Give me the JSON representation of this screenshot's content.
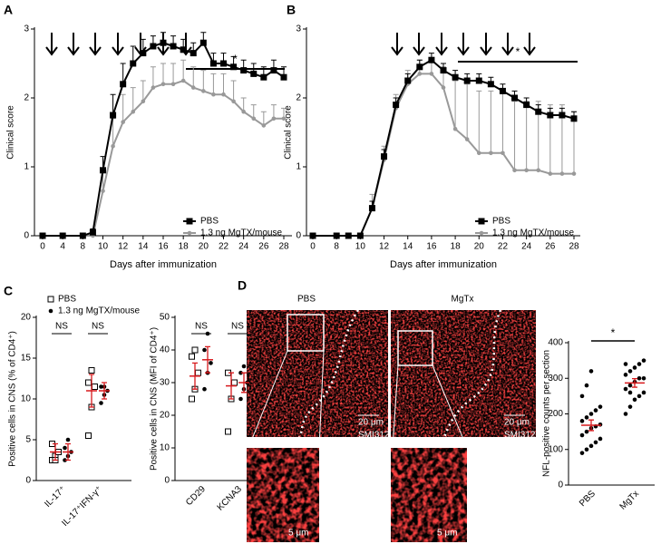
{
  "panel_labels": [
    "A",
    "B",
    "C",
    "D"
  ],
  "micrographs": {
    "labels": [
      "PBS",
      "MgTx"
    ],
    "scale_large": "20 μm",
    "stain": "SMI312",
    "scale_small": "5 μm"
  },
  "chart_data": [
    {
      "type": "line",
      "xlabel": "Days after immunization",
      "ylabel": "Clinical score",
      "legend": "lower right",
      "annotations": [
        "*"
      ],
      "x": [
        0,
        4,
        8,
        9,
        10,
        11,
        12,
        13,
        14,
        15,
        16,
        17,
        18,
        19,
        20,
        21,
        22,
        23,
        24,
        25,
        26,
        27,
        28
      ],
      "xlim": [
        0,
        28
      ],
      "xticks": [
        0,
        4,
        8,
        10,
        12,
        14,
        16,
        18,
        20,
        22,
        24,
        26,
        28
      ],
      "ylim": [
        0,
        3
      ],
      "yticks": [
        0,
        1,
        2,
        3
      ],
      "series": [
        {
          "name": "PBS",
          "color": "#000000",
          "marker": "square",
          "values": [
            0,
            0,
            0,
            0.05,
            0.95,
            1.75,
            2.2,
            2.5,
            2.65,
            2.75,
            2.8,
            2.75,
            2.7,
            2.65,
            2.8,
            2.5,
            2.5,
            2.45,
            2.4,
            2.35,
            2.3,
            2.4,
            2.3
          ],
          "errors": [
            0,
            0,
            0,
            0.05,
            0.2,
            0.3,
            0.3,
            0.25,
            0.2,
            0.15,
            0.15,
            0.15,
            0.15,
            0.15,
            0.15,
            0.15,
            0.15,
            0.15,
            0.15,
            0.15,
            0.15,
            0.15,
            0.15
          ]
        },
        {
          "name": "1.3 ng MgTX/mouse",
          "color": "#999999",
          "marker": "circle",
          "values": [
            0,
            0,
            0,
            0,
            0.65,
            1.3,
            1.65,
            1.8,
            1.95,
            2.15,
            2.2,
            2.2,
            2.25,
            2.15,
            2.1,
            2.05,
            2.05,
            1.95,
            1.8,
            1.7,
            1.6,
            1.7,
            1.7
          ],
          "errors": [
            0,
            0,
            0,
            0,
            0.3,
            0.4,
            0.4,
            0.35,
            0.3,
            0.3,
            0.3,
            0.3,
            0.3,
            0.3,
            0.3,
            0.3,
            0.3,
            0.3,
            0.2,
            0.2,
            0.2,
            0.2,
            0.15
          ]
        }
      ]
    },
    {
      "type": "line",
      "xlabel": "Days after immunization",
      "ylabel": "Clinical score",
      "legend": "lower right",
      "annotations": [
        "*"
      ],
      "x": [
        0,
        8,
        9,
        10,
        11,
        12,
        13,
        14,
        15,
        16,
        17,
        18,
        19,
        20,
        21,
        22,
        23,
        24,
        25,
        26,
        27,
        28
      ],
      "xlim": [
        0,
        28
      ],
      "xticks": [
        0,
        8,
        10,
        12,
        14,
        16,
        18,
        20,
        22,
        24,
        26,
        28
      ],
      "ylim": [
        0,
        3
      ],
      "yticks": [
        0,
        1,
        2,
        3
      ],
      "series": [
        {
          "name": "PBS",
          "color": "#000000",
          "marker": "square",
          "values": [
            0,
            0,
            0,
            0,
            0.4,
            1.15,
            1.9,
            2.25,
            2.45,
            2.55,
            2.4,
            2.3,
            2.25,
            2.25,
            2.2,
            2.1,
            2.0,
            1.9,
            1.8,
            1.75,
            1.75,
            1.7
          ],
          "errors": [
            0,
            0,
            0,
            0,
            0.1,
            0.1,
            0.1,
            0.1,
            0.1,
            0.1,
            0.1,
            0.1,
            0.1,
            0.1,
            0.1,
            0.1,
            0.1,
            0.1,
            0.1,
            0.1,
            0.1,
            0.1
          ]
        },
        {
          "name": "1.3 ng MgTX/mouse",
          "color": "#999999",
          "marker": "circle",
          "values": [
            0,
            0,
            0,
            0,
            0.4,
            1.1,
            1.85,
            2.2,
            2.35,
            2.35,
            2.15,
            1.55,
            1.4,
            1.2,
            1.2,
            1.2,
            0.95,
            0.95,
            0.95,
            0.9,
            0.9,
            0.9
          ],
          "errors": [
            0,
            0,
            0,
            0,
            0.2,
            0.2,
            0.2,
            0.2,
            0.2,
            0.2,
            0.3,
            0.7,
            0.8,
            0.9,
            0.9,
            0.9,
            1.0,
            1.0,
            1.0,
            1.0,
            1.0,
            0.9
          ]
        }
      ]
    },
    {
      "type": "dot",
      "ylabel": "Positive cells in CNS (% of CD4⁺)",
      "categories": [
        "IL-17⁺",
        "IL-17⁺IFN-γ⁺"
      ],
      "annotations": [
        "NS",
        "NS"
      ],
      "ylim": [
        0,
        20
      ],
      "yticks": [
        0,
        5,
        10,
        15,
        20
      ],
      "mean_color": "#d7191c",
      "legend": "upper left",
      "series": [
        {
          "name": "PBS",
          "color": "#000000",
          "marker": "open-square",
          "points": [
            [
              2.5,
              3,
              3.5,
              4.5,
              2.5
            ],
            [
              5.5,
              9,
              11.5,
              12,
              13.5
            ]
          ],
          "mean": [
            3.5,
            11
          ],
          "sem": [
            1,
            2
          ]
        },
        {
          "name": "1.3 ng MgTX/mouse",
          "color": "#000000",
          "marker": "circle",
          "points": [
            [
              2.5,
              3,
              3.5,
              4,
              5
            ],
            [
              9.5,
              10.5,
              11,
              11.5,
              11.5
            ]
          ],
          "mean": [
            3.5,
            11
          ],
          "sem": [
            1,
            1
          ]
        }
      ]
    },
    {
      "type": "dot",
      "ylabel": "Positive cells in CNS (MFI of CD4⁺)",
      "categories": [
        "CD29",
        "KCNA3"
      ],
      "annotations": [
        "NS",
        "NS"
      ],
      "ylim": [
        0,
        50
      ],
      "yticks": [
        0,
        10,
        20,
        30,
        40,
        50
      ],
      "mean_color": "#d7191c",
      "series": [
        {
          "color": "#000000",
          "marker": "open-square",
          "points": [
            [
              25,
              28,
              33,
              38,
              40
            ],
            [
              15,
              25,
              30,
              33
            ]
          ],
          "mean": [
            32,
            29
          ],
          "sem": [
            4,
            4
          ]
        },
        {
          "color": "#000000",
          "marker": "circle",
          "points": [
            [
              28,
              33,
              36,
              40,
              45
            ],
            [
              25,
              28,
              30,
              33,
              35
            ]
          ],
          "mean": [
            37,
            30
          ],
          "sem": [
            4,
            3
          ]
        }
      ]
    },
    {
      "type": "dot",
      "ylabel": "NFL-positive counts per section",
      "categories": [
        "PBS",
        "MgTx"
      ],
      "annotations": [
        "*"
      ],
      "ylim": [
        0,
        400
      ],
      "yticks": [
        0,
        100,
        200,
        300,
        400
      ],
      "mean_color": "#d7191c",
      "series": [
        {
          "color": "#000000",
          "marker": "circle",
          "points": [
            [
              90,
              100,
              110,
              120,
              130,
              140,
              150,
              160,
              165,
              170,
              180,
              190,
              200,
              210,
              220,
              250,
              280,
              320
            ],
            [
              200,
              220,
              240,
              250,
              260,
              270,
              280,
              290,
              300,
              300,
              310,
              320,
              330,
              340,
              350,
              340,
              260
            ]
          ],
          "mean": [
            168,
            287
          ],
          "sem": [
            15,
            12
          ]
        }
      ]
    }
  ]
}
